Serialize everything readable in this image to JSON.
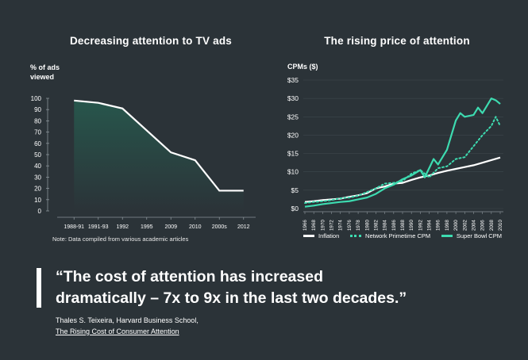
{
  "chart_data": [
    {
      "type": "area",
      "title": "Decreasing attention to TV ads",
      "ylabel": "% of ads viewed",
      "categories": [
        "1988-91",
        "1991-93",
        "1992",
        "1995",
        "2009",
        "2010",
        "2000s",
        "2012"
      ],
      "values": [
        98,
        96,
        91,
        null,
        52,
        45,
        18,
        18
      ],
      "yticks": [
        0,
        10,
        20,
        30,
        40,
        50,
        60,
        70,
        80,
        90,
        100
      ],
      "ylim": [
        0,
        100
      ],
      "note": "Note: Data compiled from various academic articles",
      "fill_color": "#27564c",
      "line_color": "#ffffff"
    },
    {
      "type": "line",
      "title": "The rising price of attention",
      "ylabel": "CPMs ($)",
      "x": [
        1966,
        1968,
        1970,
        1972,
        1974,
        1976,
        1978,
        1980,
        1982,
        1984,
        1986,
        1988,
        1990,
        1992,
        1994,
        1996,
        1998,
        2000,
        2002,
        2004,
        2006,
        2008,
        2010
      ],
      "yticks": [
        "$0",
        "$5",
        "$10",
        "$15",
        "$20",
        "$25",
        "$30",
        "$35"
      ],
      "ylim": [
        0,
        35
      ],
      "series": [
        {
          "name": "Inflation",
          "style": "solid",
          "color": "#ffffff",
          "points": [
            [
              1966,
              1.8
            ],
            [
              1968,
              2.0
            ],
            [
              1970,
              2.3
            ],
            [
              1972,
              2.5
            ],
            [
              1974,
              2.7
            ],
            [
              1976,
              3.2
            ],
            [
              1978,
              3.6
            ],
            [
              1980,
              4.2
            ],
            [
              1982,
              5.5
            ],
            [
              1984,
              6.0
            ],
            [
              1986,
              6.8
            ],
            [
              1988,
              7.0
            ],
            [
              1990,
              7.8
            ],
            [
              1992,
              8.5
            ],
            [
              1994,
              9.0
            ],
            [
              1996,
              9.7
            ],
            [
              1998,
              10.3
            ],
            [
              2000,
              10.8
            ],
            [
              2002,
              11.3
            ],
            [
              2004,
              11.8
            ],
            [
              2006,
              12.5
            ],
            [
              2008,
              13.2
            ],
            [
              2010,
              13.9
            ]
          ]
        },
        {
          "name": "Network Primetime CPM",
          "style": "dotted",
          "color": "#3ddbb0",
          "points": [
            [
              1966,
              1.5
            ],
            [
              1968,
              1.8
            ],
            [
              1970,
              2.0
            ],
            [
              1972,
              2.3
            ],
            [
              1974,
              2.8
            ],
            [
              1976,
              3.0
            ],
            [
              1978,
              3.5
            ],
            [
              1980,
              4.5
            ],
            [
              1982,
              5.5
            ],
            [
              1984,
              6.8
            ],
            [
              1986,
              7.0
            ],
            [
              1988,
              7.5
            ],
            [
              1990,
              9.5
            ],
            [
              1992,
              10.5
            ],
            [
              1994,
              8.5
            ],
            [
              1996,
              11.0
            ],
            [
              1998,
              11.5
            ],
            [
              2000,
              13.5
            ],
            [
              2002,
              14.0
            ],
            [
              2004,
              17.0
            ],
            [
              2006,
              20.0
            ],
            [
              2008,
              22.5
            ],
            [
              2009,
              25.0
            ],
            [
              2010,
              22.5
            ]
          ]
        },
        {
          "name": "Super Bowl CPM",
          "style": "solid",
          "color": "#3ddbb0",
          "points": [
            [
              1966,
              0.5
            ],
            [
              1968,
              0.8
            ],
            [
              1970,
              1.2
            ],
            [
              1972,
              1.5
            ],
            [
              1974,
              1.8
            ],
            [
              1976,
              2.0
            ],
            [
              1978,
              2.5
            ],
            [
              1980,
              3.0
            ],
            [
              1982,
              4.0
            ],
            [
              1984,
              5.5
            ],
            [
              1986,
              6.5
            ],
            [
              1988,
              8.0
            ],
            [
              1990,
              9.0
            ],
            [
              1992,
              10.5
            ],
            [
              1993,
              8.5
            ],
            [
              1995,
              13.5
            ],
            [
              1996,
              12.0
            ],
            [
              1998,
              16.0
            ],
            [
              2000,
              24.0
            ],
            [
              2001,
              26.0
            ],
            [
              2002,
              25.0
            ],
            [
              2004,
              25.5
            ],
            [
              2005,
              27.5
            ],
            [
              2006,
              26.0
            ],
            [
              2007,
              28.0
            ],
            [
              2008,
              30.0
            ],
            [
              2009,
              29.5
            ],
            [
              2010,
              28.5
            ]
          ]
        }
      ]
    }
  ],
  "quote": {
    "line1": "“The cost of attention has increased",
    "line2": "dramatically – 7x to 9x in the last two decades.”",
    "author": "Thales S. Teixeira, Harvard Business School,",
    "source": "The Rising Cost of Consumer Attention"
  },
  "colors": {
    "background": "#2b3338",
    "teal": "#3ddbb0",
    "area_fill": "#27564c"
  }
}
